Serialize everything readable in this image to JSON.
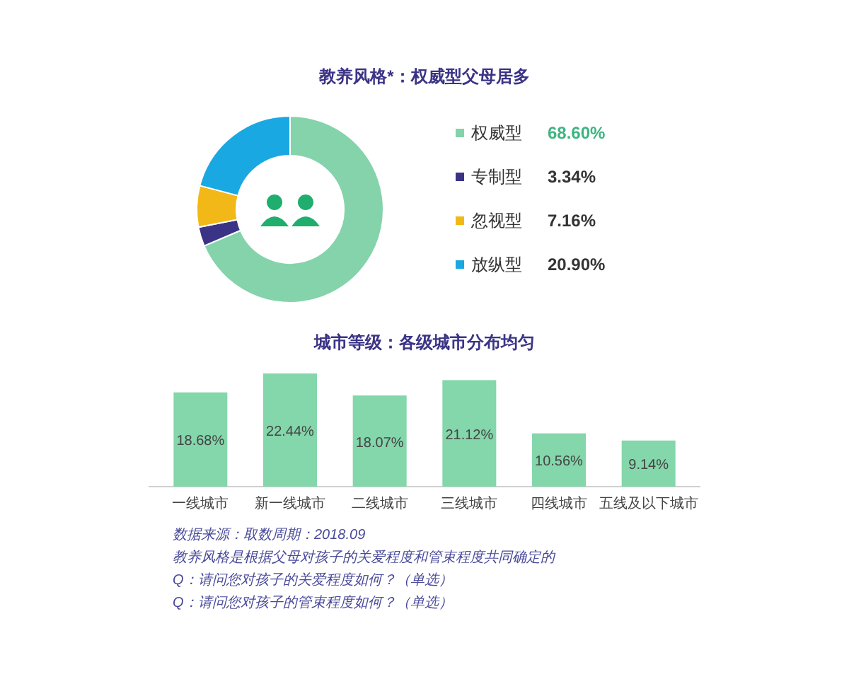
{
  "chart_data": [
    {
      "type": "donut",
      "title": "教养风格*：权威型父母居多",
      "categories": [
        "权威型",
        "专制型",
        "忽视型",
        "放纵型"
      ],
      "values": [
        68.6,
        3.34,
        7.16,
        20.9
      ],
      "value_labels": [
        "68.60%",
        "3.34%",
        "7.16%",
        "20.90%"
      ],
      "colors": [
        "#84d3ab",
        "#3b3486",
        "#f2b817",
        "#1aa8e2"
      ],
      "legend": "right"
    },
    {
      "type": "bar",
      "title": "城市等级：各级城市分布均匀",
      "categories": [
        "一线城市",
        "新一线城市",
        "二线城市",
        "三线城市",
        "四线城市",
        "五线及以下城市"
      ],
      "values": [
        18.68,
        22.44,
        18.07,
        21.12,
        10.56,
        9.14
      ],
      "value_labels": [
        "18.68%",
        "22.44%",
        "18.07%",
        "21.12%",
        "10.56%",
        "9.14%"
      ],
      "color": "#84d6ab",
      "annotations": [
        "数据来源：取数周期：2018.09",
        "教养风格是根据父母对孩子的关爱程度和管束程度共同确定的",
        "Q：请问您对孩子的关爱程度如何？（单选）",
        "Q：请问您对孩子的管束程度如何？（单选）"
      ]
    }
  ]
}
